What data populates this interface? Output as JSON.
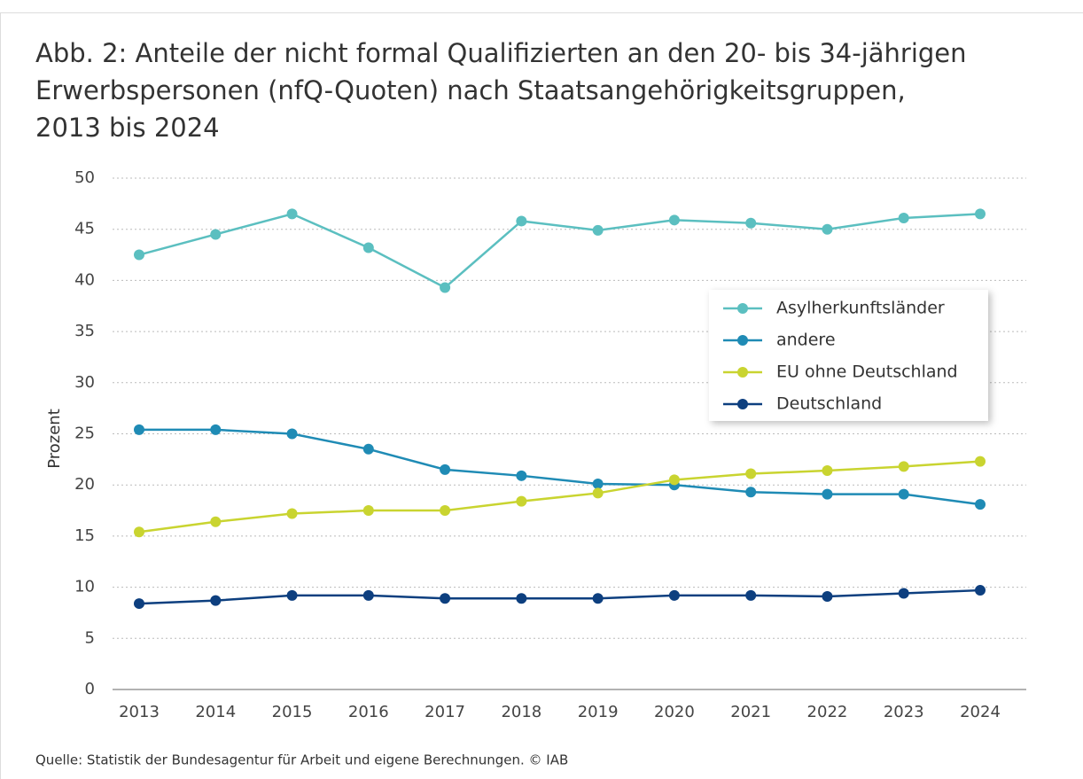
{
  "chart_data": {
    "type": "line",
    "title": [
      "Abb. 2: Anteile der nicht formal Qualifizierten an den 20- bis 34-jährigen",
      "Erwerbspersonen (nfQ-Quoten) nach Staatsangehörigkeitsgruppen,",
      "2013 bis 2024"
    ],
    "y_label": "Prozent",
    "source": "Quelle: Statistik der Bundesagentur für Arbeit und eigene Berechnungen.  © IAB",
    "categories": [
      "2013",
      "2014",
      "2015",
      "2016",
      "2017",
      "2018",
      "2019",
      "2020",
      "2021",
      "2022",
      "2023",
      "2024"
    ],
    "series": [
      {
        "name": "Asylherkunftsländer",
        "color": "#5bbfc0",
        "values": [
          42.5,
          44.5,
          46.5,
          43.2,
          39.3,
          45.8,
          44.9,
          45.9,
          45.6,
          45.0,
          46.1,
          46.5
        ]
      },
      {
        "name": "andere",
        "color": "#1f8bb5",
        "values": [
          25.4,
          25.4,
          25.0,
          23.5,
          21.5,
          20.9,
          20.1,
          20.0,
          19.3,
          19.1,
          19.1,
          18.1
        ]
      },
      {
        "name": "EU ohne Deutschland",
        "color": "#c9d430",
        "values": [
          15.4,
          16.4,
          17.2,
          17.5,
          17.5,
          18.4,
          19.2,
          20.5,
          21.1,
          21.4,
          21.8,
          22.3
        ]
      },
      {
        "name": "Deutschland",
        "color": "#0d3f7f",
        "values": [
          8.4,
          8.7,
          9.2,
          9.2,
          8.9,
          8.9,
          8.9,
          9.2,
          9.2,
          9.1,
          9.4,
          9.7
        ]
      }
    ],
    "ylim": [
      0,
      50
    ],
    "yticks": [
      0,
      5,
      10,
      15,
      20,
      25,
      30,
      35,
      40,
      45,
      50
    ],
    "grid": true,
    "legend": "right"
  }
}
